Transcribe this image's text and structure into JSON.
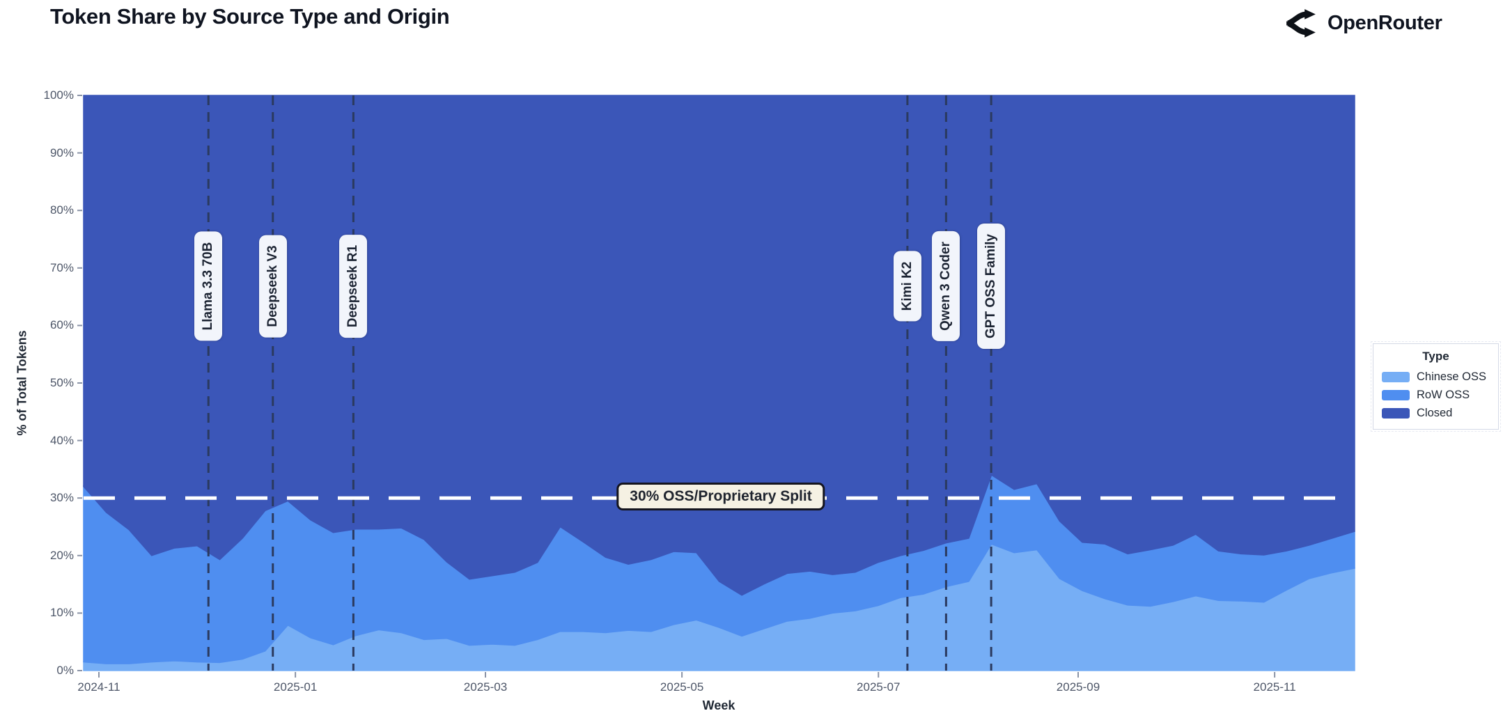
{
  "header": {
    "brand": "OpenRouter",
    "logo_icon": "openrouter-fork-icon"
  },
  "chart_data": {
    "type": "area",
    "stacked": true,
    "title": "Token Share by Source Type and Origin",
    "xlabel": "Week",
    "ylabel": "% of Total Tokens",
    "ylim": [
      0,
      100
    ],
    "grid": false,
    "y_ticks": [
      "0%",
      "10%",
      "20%",
      "30%",
      "40%",
      "50%",
      "60%",
      "70%",
      "80%",
      "90%",
      "100%"
    ],
    "x_ticks": [
      {
        "label": "2024-11",
        "date": "2024-11-01"
      },
      {
        "label": "2025-01",
        "date": "2025-01-01"
      },
      {
        "label": "2025-03",
        "date": "2025-03-01"
      },
      {
        "label": "2025-05",
        "date": "2025-05-01"
      },
      {
        "label": "2025-07",
        "date": "2025-07-01"
      },
      {
        "label": "2025-09",
        "date": "2025-09-01"
      },
      {
        "label": "2025-11",
        "date": "2025-11-01"
      }
    ],
    "weeks": [
      "2024-10-27",
      "2024-11-03",
      "2024-11-10",
      "2024-11-17",
      "2024-11-24",
      "2024-12-01",
      "2024-12-08",
      "2024-12-15",
      "2024-12-22",
      "2024-12-29",
      "2025-01-05",
      "2025-01-12",
      "2025-01-19",
      "2025-01-26",
      "2025-02-02",
      "2025-02-09",
      "2025-02-16",
      "2025-02-23",
      "2025-03-02",
      "2025-03-09",
      "2025-03-16",
      "2025-03-23",
      "2025-03-30",
      "2025-04-06",
      "2025-04-13",
      "2025-04-20",
      "2025-04-27",
      "2025-05-04",
      "2025-05-11",
      "2025-05-18",
      "2025-05-25",
      "2025-06-01",
      "2025-06-08",
      "2025-06-15",
      "2025-06-22",
      "2025-06-29",
      "2025-07-06",
      "2025-07-13",
      "2025-07-20",
      "2025-07-27",
      "2025-08-03",
      "2025-08-10",
      "2025-08-17",
      "2025-08-24",
      "2025-08-31",
      "2025-09-07",
      "2025-09-14",
      "2025-09-21",
      "2025-09-28",
      "2025-10-05",
      "2025-10-12",
      "2025-10-19",
      "2025-10-26",
      "2025-11-02",
      "2025-11-09",
      "2025-11-16",
      "2025-11-23"
    ],
    "series": [
      {
        "name": "Chinese OSS",
        "color": "#76AEF5",
        "values": [
          1.5,
          1.2,
          1.2,
          1.5,
          1.7,
          1.5,
          1.4,
          2.0,
          3.4,
          7.9,
          5.7,
          4.5,
          6.1,
          7.1,
          6.6,
          5.4,
          5.6,
          4.4,
          4.6,
          4.4,
          5.4,
          6.8,
          6.8,
          6.6,
          7.0,
          6.8,
          8.0,
          8.8,
          7.5,
          6.0,
          7.3,
          8.6,
          9.1,
          10.0,
          10.4,
          11.3,
          12.7,
          13.3,
          14.6,
          15.5,
          22.0,
          20.5,
          21.0,
          16.0,
          13.9,
          12.5,
          11.4,
          11.2,
          12.0,
          13.0,
          12.2,
          12.1,
          11.9,
          14.0,
          16.0,
          17.0,
          17.8
        ]
      },
      {
        "name": "RoW OSS",
        "color": "#4F8EF0",
        "values": [
          30.5,
          26.3,
          23.3,
          18.5,
          19.6,
          20.2,
          17.9,
          21.0,
          24.4,
          21.6,
          20.5,
          19.5,
          18.5,
          17.5,
          18.2,
          17.4,
          13.3,
          11.5,
          11.9,
          12.7,
          13.4,
          18.2,
          15.6,
          13.1,
          11.5,
          12.5,
          12.7,
          11.7,
          8.0,
          7.1,
          7.8,
          8.3,
          8.2,
          6.7,
          6.7,
          7.5,
          7.3,
          7.6,
          7.6,
          7.5,
          12.0,
          11.0,
          11.5,
          10.0,
          8.4,
          9.5,
          8.9,
          9.8,
          9.8,
          10.7,
          8.6,
          8.2,
          8.2,
          6.8,
          5.8,
          6.0,
          6.4
        ]
      },
      {
        "name": "Closed",
        "color": "#3B56B8",
        "values": [
          68.0,
          72.5,
          75.5,
          80.0,
          78.7,
          78.3,
          80.7,
          77.0,
          72.2,
          70.5,
          73.8,
          76.0,
          75.4,
          75.4,
          75.2,
          77.2,
          81.1,
          84.1,
          83.5,
          82.9,
          81.2,
          75.0,
          77.6,
          80.3,
          81.5,
          80.7,
          79.3,
          79.5,
          84.5,
          86.9,
          84.9,
          83.1,
          82.7,
          83.3,
          82.9,
          81.2,
          80.0,
          79.1,
          77.8,
          77.0,
          66.0,
          68.5,
          67.5,
          74.0,
          77.7,
          78.0,
          79.7,
          79.0,
          78.2,
          76.3,
          79.2,
          79.7,
          79.9,
          79.2,
          78.2,
          77.0,
          75.8
        ]
      }
    ],
    "legend": {
      "title": "Type",
      "position": "right"
    },
    "event_lines": [
      {
        "label": "Llama 3.3 70B",
        "date": "2024-12-05"
      },
      {
        "label": "Deepseek V3",
        "date": "2024-12-25"
      },
      {
        "label": "Deepseek R1",
        "date": "2025-01-19"
      },
      {
        "label": "Kimi K2",
        "date": "2025-07-10"
      },
      {
        "label": "Qwen 3 Coder",
        "date": "2025-07-22"
      },
      {
        "label": "GPT OSS Family",
        "date": "2025-08-05"
      }
    ],
    "reference_line": {
      "label": "30% OSS/Proprietary Split",
      "value": 30
    },
    "style_colors": {
      "event_line": "#2B3A5F",
      "reference_line": "#FFFFFF",
      "axis_text": "#4D5668",
      "title_text": "#0F1420"
    }
  }
}
